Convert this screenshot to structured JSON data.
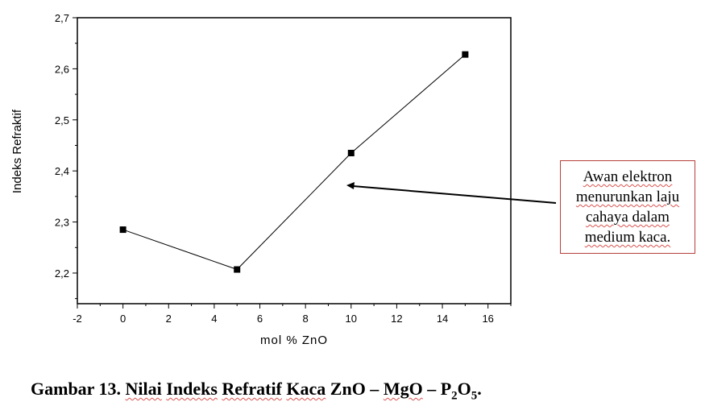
{
  "chart_data": {
    "type": "line",
    "x": [
      0,
      5,
      10,
      15
    ],
    "y": [
      2.285,
      2.207,
      2.435,
      2.628
    ],
    "xlabel": "mol % ZnO",
    "ylabel": "Indeks Refraktif",
    "xlim": [
      -2,
      17
    ],
    "ylim": [
      2.14,
      2.7
    ],
    "xticks": [
      "-2",
      "0",
      "2",
      "4",
      "6",
      "8",
      "10",
      "12",
      "14",
      "16"
    ],
    "yticks": [
      "2,2",
      "2,3",
      "2,4",
      "2,5",
      "2,6",
      "2,7"
    ],
    "marker": "square",
    "grid": false
  },
  "annotation": {
    "text": "Awan elektron\nmenurunkan laju\ncahaya dalam\nmedium kaca.",
    "border_color": "#b5413b"
  },
  "caption": {
    "prefix": "Gambar 13. ",
    "word1": "Nilai",
    "word2": "Indeks",
    "word3": "Refratif",
    "word4": "Kaca",
    "mid": " ZnO – ",
    "word5": "MgO",
    "dash": " – P",
    "sub1": "2",
    "o": "O",
    "sub2": "5",
    "end": "."
  }
}
